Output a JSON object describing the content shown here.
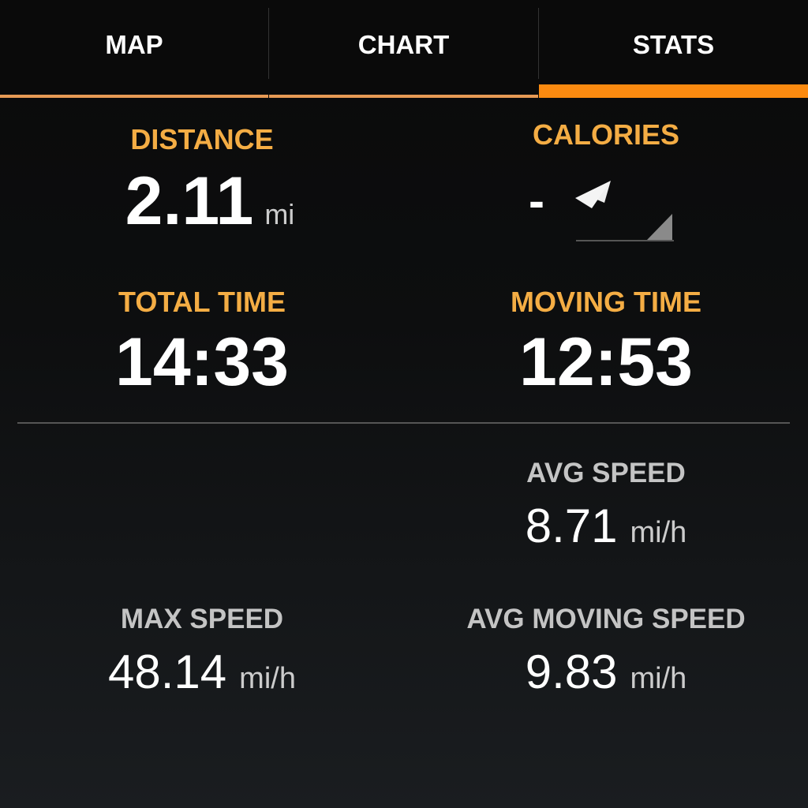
{
  "tabs": [
    {
      "label": "MAP",
      "active": false
    },
    {
      "label": "CHART",
      "active": false
    },
    {
      "label": "STATS",
      "active": true
    }
  ],
  "accent": "#fb8a10",
  "stats": {
    "distance": {
      "label": "DISTANCE",
      "value": "2.11",
      "unit": "mi"
    },
    "calories": {
      "label": "CALORIES",
      "value": "-",
      "icon": "location-arrow-icon"
    },
    "total_time": {
      "label": "TOTAL TIME",
      "value": "14:33"
    },
    "moving_time": {
      "label": "MOVING TIME",
      "value": "12:53"
    },
    "avg_speed": {
      "label": "AVG SPEED",
      "value": "8.71",
      "unit": "mi/h"
    },
    "max_speed": {
      "label": "MAX SPEED",
      "value": "48.14",
      "unit": "mi/h"
    },
    "avg_moving_speed": {
      "label": "AVG MOVING SPEED",
      "value": "9.83",
      "unit": "mi/h"
    }
  }
}
